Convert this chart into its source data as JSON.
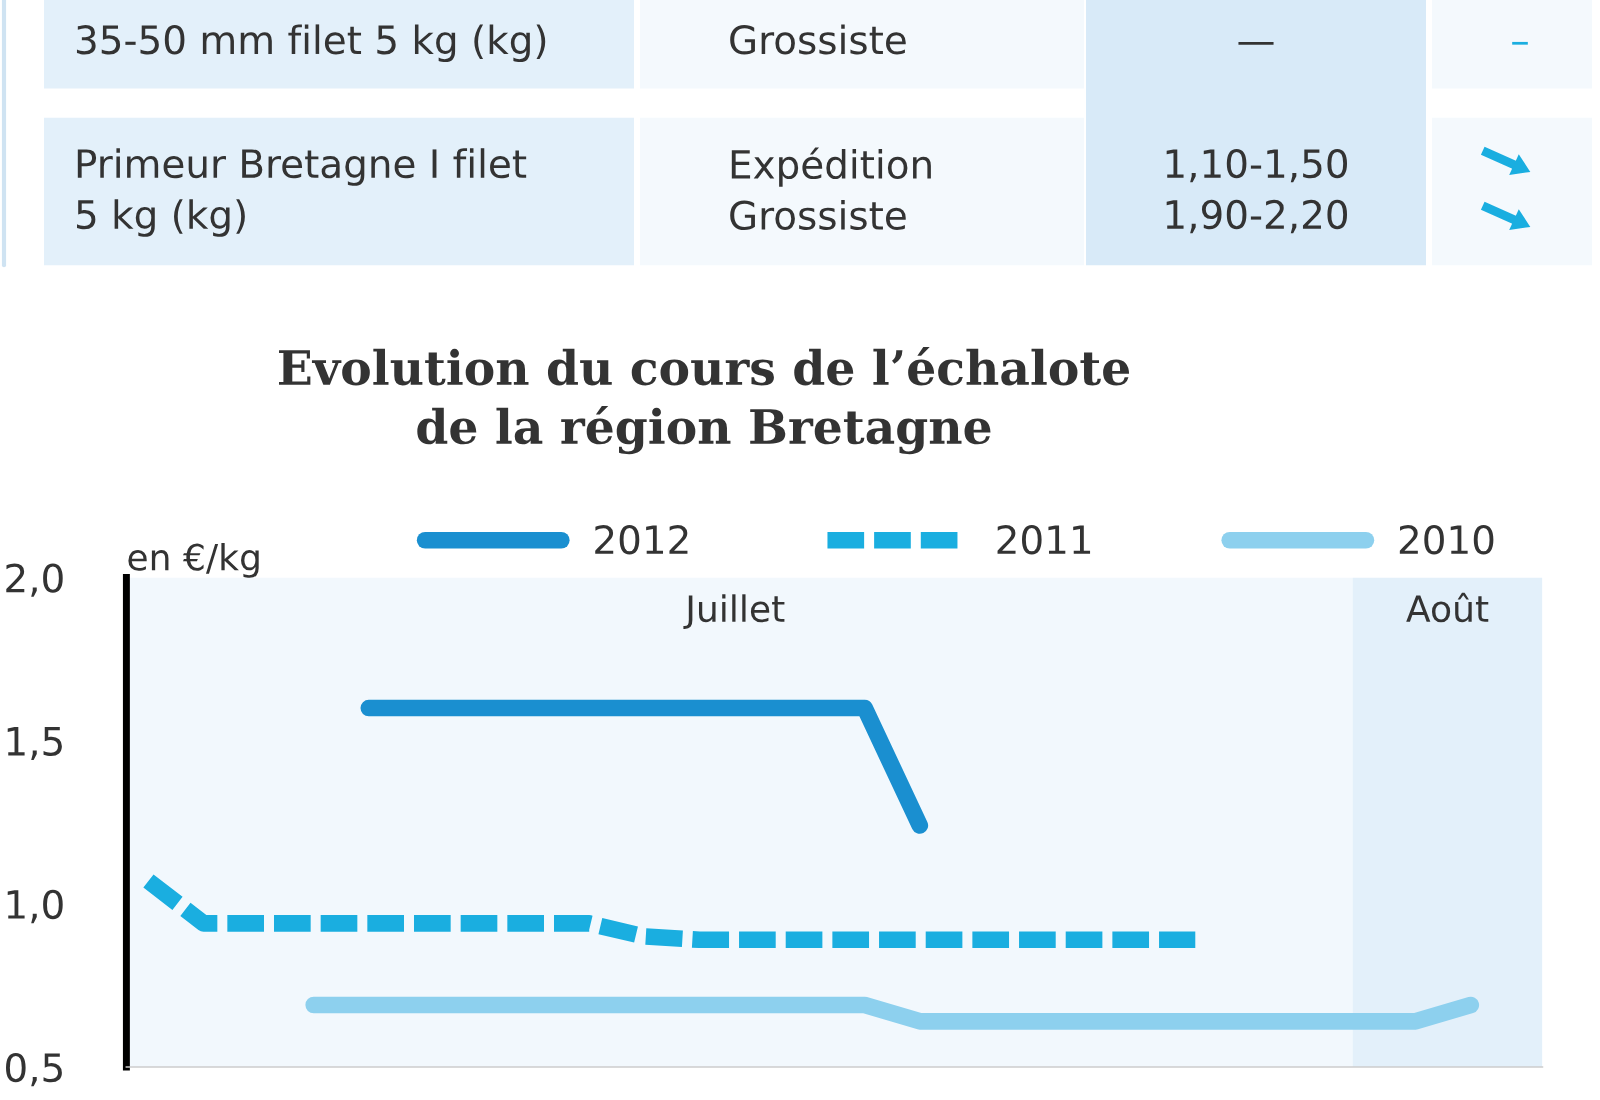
{
  "chart_data": {
    "type": "line",
    "title": "Evolution du cours de l’échalote\nde la région Bretagne",
    "ylabel": "en €/kg",
    "categories": [
      null,
      null,
      null,
      null,
      null,
      null,
      null,
      null,
      null,
      null,
      null,
      null,
      null,
      null,
      null,
      null,
      null,
      null,
      null,
      null,
      null,
      null,
      null,
      null,
      null,
      null
    ],
    "series": [
      {
        "name": "2012",
        "color": "#1a8fd0",
        "line_style": "solid",
        "values": [
          null,
          null,
          null,
          null,
          1.6,
          1.6,
          1.6,
          1.6,
          1.6,
          1.6,
          1.6,
          1.6,
          1.6,
          1.6,
          1.24,
          null,
          null,
          null,
          null,
          null,
          null,
          null,
          null,
          null,
          null,
          null
        ]
      },
      {
        "name": "2011",
        "color": "#1aaee0",
        "line_style": "dashed",
        "values": [
          1.07,
          0.94,
          0.94,
          0.94,
          0.94,
          0.94,
          0.94,
          0.94,
          0.94,
          0.9,
          0.89,
          0.89,
          0.89,
          0.89,
          0.89,
          0.89,
          0.89,
          0.89,
          0.89,
          0.89,
          null,
          null,
          null,
          null,
          null,
          null
        ]
      },
      {
        "name": "2010",
        "color": "#8dd0ee",
        "line_style": "solid",
        "values": [
          null,
          null,
          null,
          0.69,
          0.69,
          0.69,
          0.69,
          0.69,
          0.69,
          0.69,
          0.69,
          0.69,
          0.69,
          0.69,
          0.64,
          0.64,
          0.64,
          0.64,
          0.64,
          0.64,
          0.64,
          0.64,
          0.64,
          0.64,
          0.69,
          null
        ]
      }
    ],
    "ylim": [
      0.5,
      2.0
    ],
    "yticks": [
      {
        "value": 0.5,
        "label": "0,5"
      },
      {
        "value": 1.0,
        "label": "1,0"
      },
      {
        "value": 1.5,
        "label": "1,5"
      },
      {
        "value": 2.0,
        "label": "2,0"
      }
    ],
    "tick_labels": "y",
    "legend": "top",
    "grid": false,
    "annotations": [
      "35-50 mm filet 5 kg (kg)",
      "Grossiste",
      "—",
      "–",
      "Primeur Bretagne I filet\n5 kg (kg)",
      "Expédition\nGrossiste",
      "1,10-1,50\n1,90-2,20",
      "Juillet",
      "Août"
    ]
  }
}
